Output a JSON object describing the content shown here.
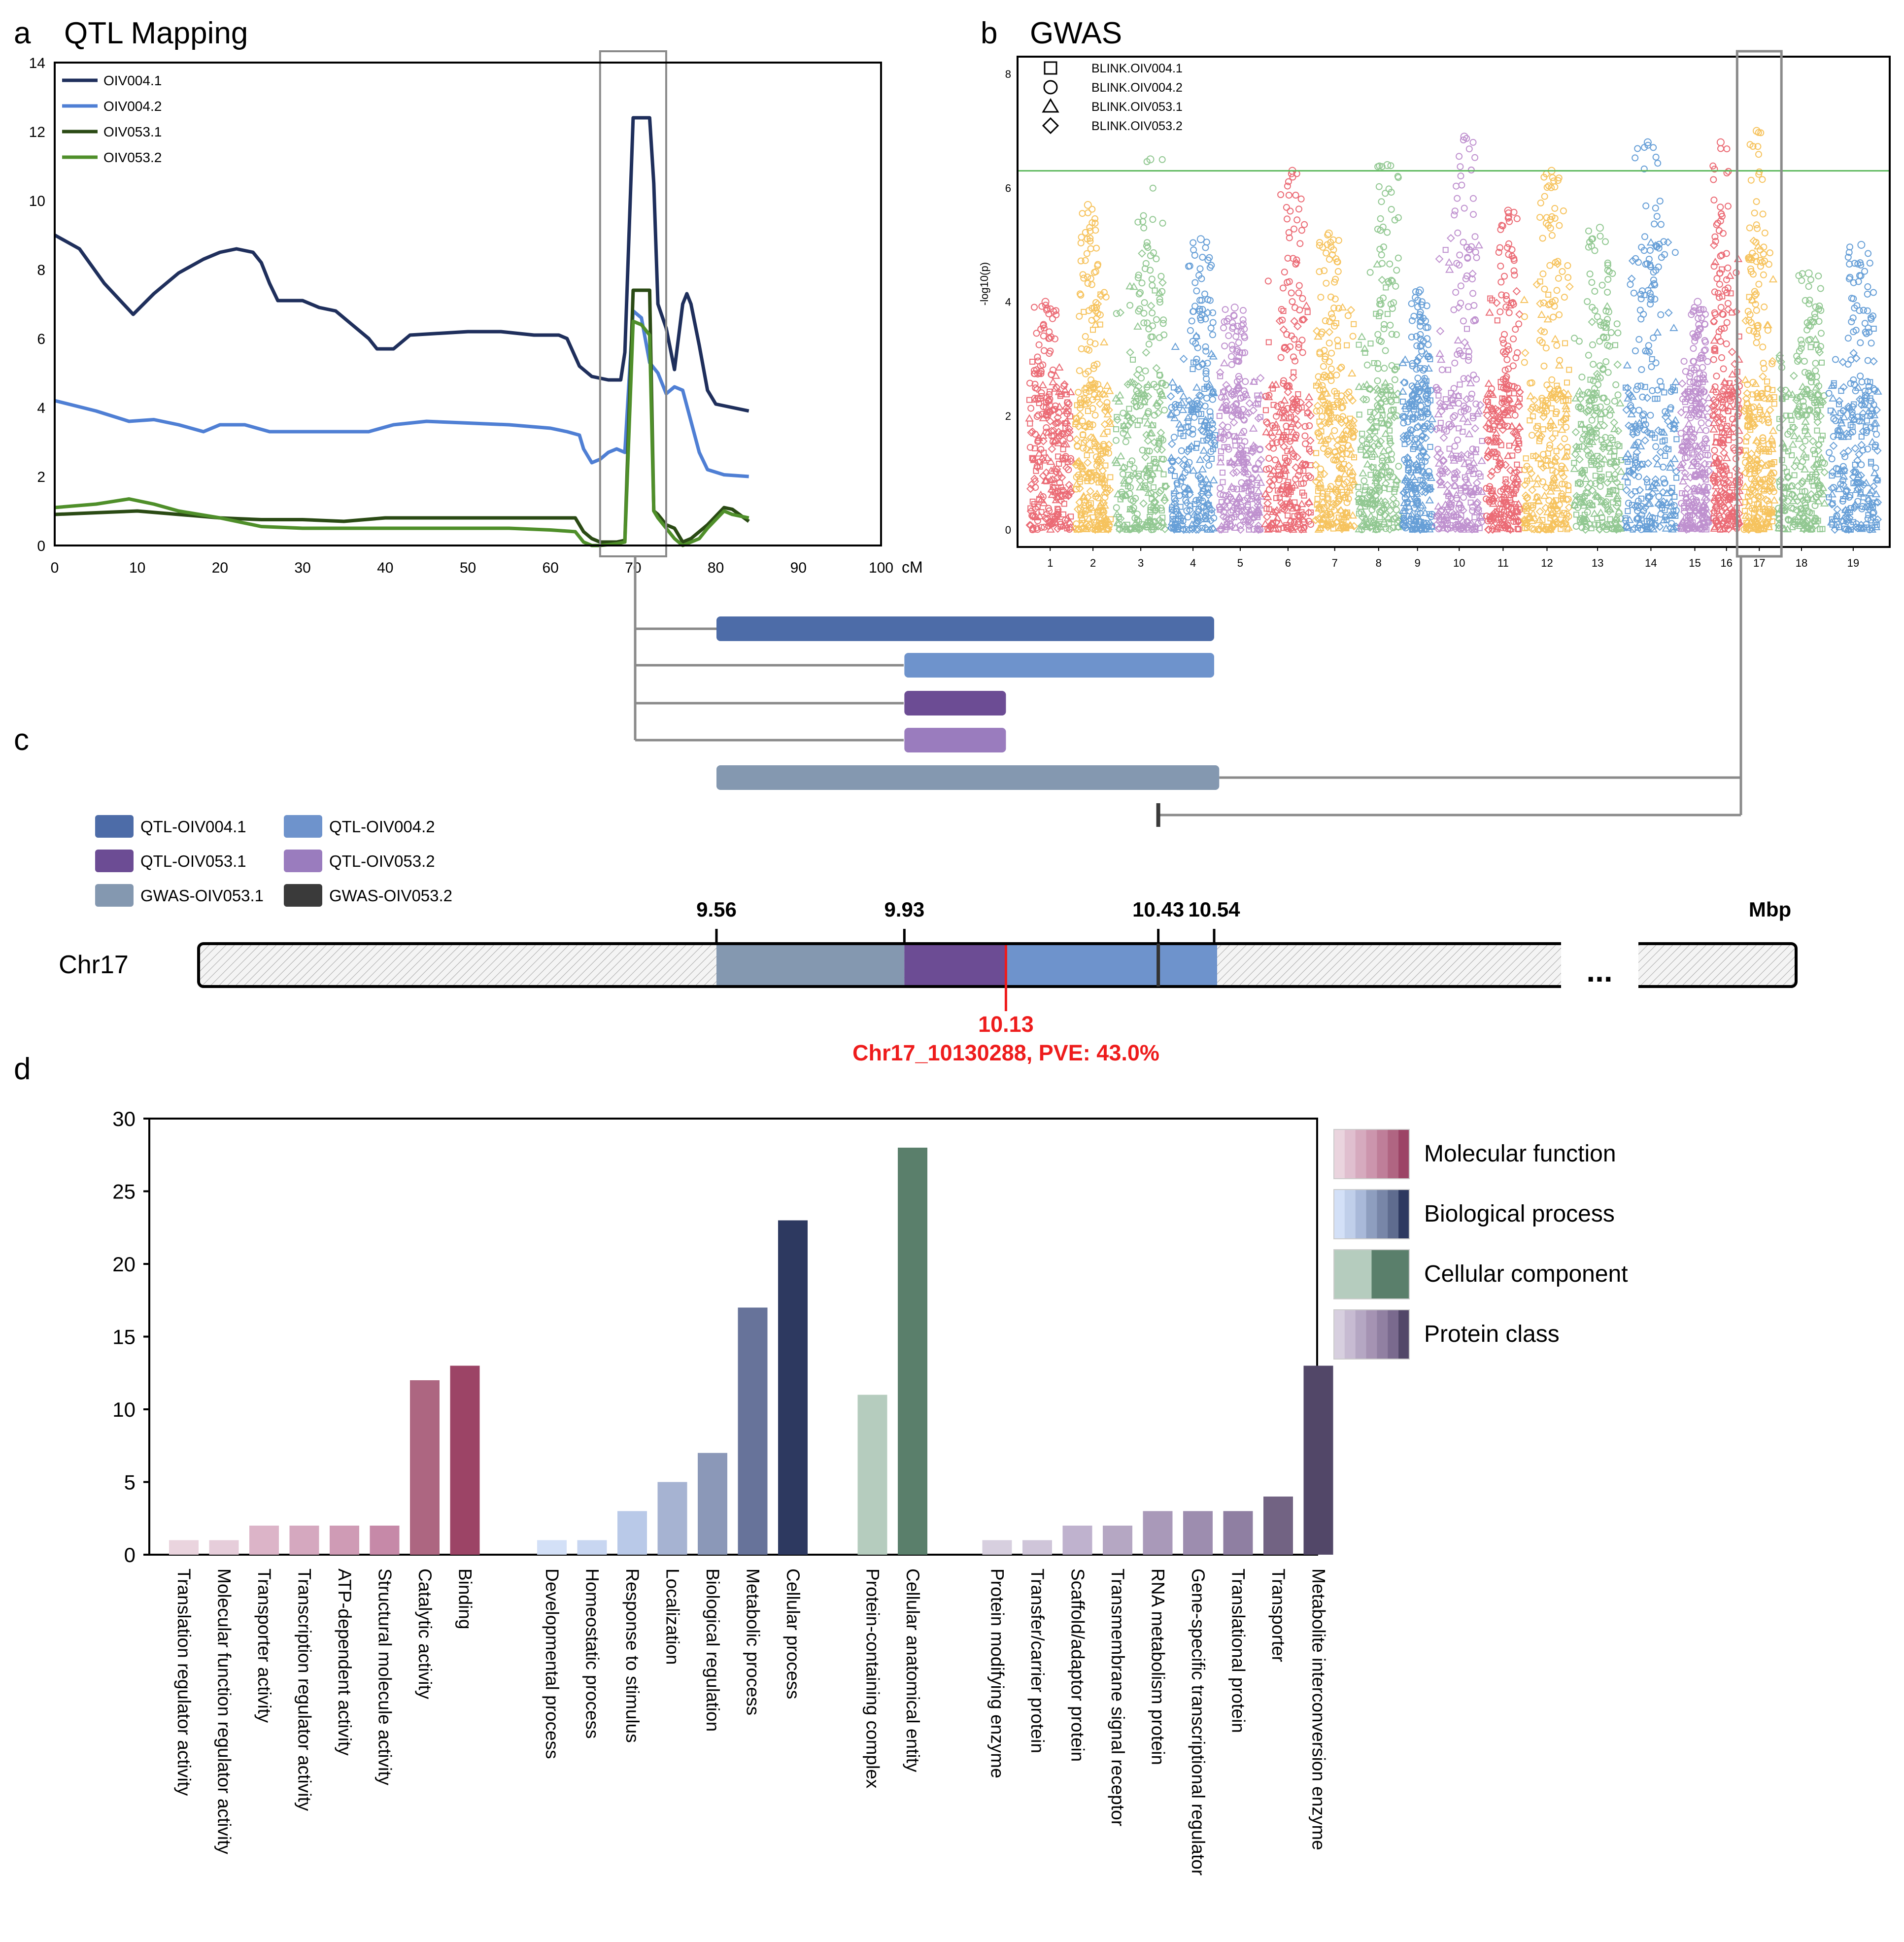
{
  "panels": {
    "a": {
      "letter": "a",
      "title": "QTL Mapping"
    },
    "b": {
      "letter": "b",
      "title": "GWAS"
    },
    "c": {
      "letter": "c"
    },
    "d": {
      "letter": "d"
    }
  },
  "chart_data": [
    {
      "id": "qtl",
      "type": "line",
      "title": "QTL Mapping",
      "xlabel": "cM",
      "xlim": [
        0,
        100
      ],
      "ylim": [
        0,
        14
      ],
      "x_ticks": [
        0,
        10,
        20,
        30,
        40,
        50,
        60,
        70,
        80,
        90,
        100
      ],
      "y_ticks": [
        0,
        2,
        4,
        6,
        8,
        10,
        12,
        14
      ],
      "highlight_range": [
        66,
        74
      ],
      "series": [
        {
          "name": "OIV004.1",
          "color": "#1f2f5c",
          "points": [
            [
              0,
              9.0
            ],
            [
              3,
              8.6
            ],
            [
              6,
              7.6
            ],
            [
              9.5,
              6.7
            ],
            [
              12,
              7.3
            ],
            [
              15,
              7.9
            ],
            [
              18,
              8.3
            ],
            [
              20,
              8.5
            ],
            [
              22,
              8.6
            ],
            [
              24,
              8.5
            ],
            [
              25,
              8.2
            ],
            [
              26,
              7.6
            ],
            [
              27,
              7.1
            ],
            [
              30,
              7.1
            ],
            [
              31,
              7.0
            ],
            [
              32,
              6.9
            ],
            [
              34,
              6.8
            ],
            [
              36,
              6.4
            ],
            [
              38,
              6.0
            ],
            [
              39,
              5.7
            ],
            [
              41,
              5.7
            ],
            [
              43,
              6.1
            ],
            [
              50,
              6.2
            ],
            [
              54,
              6.2
            ],
            [
              58,
              6.1
            ],
            [
              61,
              6.1
            ],
            [
              62,
              6.0
            ],
            [
              63.5,
              5.2
            ],
            [
              65,
              4.9
            ],
            [
              67,
              4.8
            ],
            [
              68.5,
              4.8
            ],
            [
              69,
              5.6
            ],
            [
              70,
              12.4
            ],
            [
              72,
              12.4
            ],
            [
              72.5,
              10.5
            ],
            [
              73,
              7.0
            ],
            [
              74,
              6.3
            ],
            [
              75,
              5.1
            ],
            [
              76,
              7.0
            ],
            [
              76.5,
              7.3
            ],
            [
              77,
              7.0
            ],
            [
              78,
              5.8
            ],
            [
              79,
              4.5
            ],
            [
              80,
              4.1
            ],
            [
              82,
              4.0
            ],
            [
              84,
              3.9
            ]
          ]
        },
        {
          "name": "OIV004.2",
          "color": "#4f7fd4",
          "points": [
            [
              0,
              4.2
            ],
            [
              5,
              3.9
            ],
            [
              9,
              3.6
            ],
            [
              12,
              3.65
            ],
            [
              15,
              3.5
            ],
            [
              18,
              3.3
            ],
            [
              20,
              3.5
            ],
            [
              23,
              3.5
            ],
            [
              26,
              3.3
            ],
            [
              30,
              3.3
            ],
            [
              34,
              3.3
            ],
            [
              38,
              3.3
            ],
            [
              41,
              3.5
            ],
            [
              45,
              3.6
            ],
            [
              50,
              3.55
            ],
            [
              55,
              3.5
            ],
            [
              60,
              3.4
            ],
            [
              62,
              3.3
            ],
            [
              63.5,
              3.2
            ],
            [
              64,
              2.8
            ],
            [
              65,
              2.4
            ],
            [
              66,
              2.5
            ],
            [
              67,
              2.7
            ],
            [
              68,
              2.8
            ],
            [
              69,
              2.7
            ],
            [
              70,
              6.8
            ],
            [
              71,
              6.6
            ],
            [
              72,
              5.3
            ],
            [
              73,
              5.0
            ],
            [
              74,
              4.4
            ],
            [
              75,
              4.6
            ],
            [
              76,
              4.5
            ],
            [
              78,
              2.7
            ],
            [
              79,
              2.2
            ],
            [
              81,
              2.05
            ],
            [
              84,
              2.0
            ]
          ]
        },
        {
          "name": "OIV053.1",
          "color": "#2a4a14",
          "points": [
            [
              0,
              0.9
            ],
            [
              5,
              0.95
            ],
            [
              10,
              1.0
            ],
            [
              15,
              0.9
            ],
            [
              20,
              0.8
            ],
            [
              25,
              0.75
            ],
            [
              30,
              0.75
            ],
            [
              35,
              0.7
            ],
            [
              40,
              0.8
            ],
            [
              45,
              0.8
            ],
            [
              50,
              0.8
            ],
            [
              55,
              0.8
            ],
            [
              60,
              0.8
            ],
            [
              63,
              0.8
            ],
            [
              64,
              0.4
            ],
            [
              65,
              0.2
            ],
            [
              66,
              0.1
            ],
            [
              68,
              0.1
            ],
            [
              69,
              0.15
            ],
            [
              70,
              7.4
            ],
            [
              72,
              7.4
            ],
            [
              72.5,
              1.0
            ],
            [
              73,
              0.9
            ],
            [
              74,
              0.6
            ],
            [
              75,
              0.5
            ],
            [
              76,
              0.1
            ],
            [
              77,
              0.2
            ],
            [
              79,
              0.6
            ],
            [
              81,
              1.1
            ],
            [
              82,
              1.05
            ],
            [
              84,
              0.7
            ]
          ]
        },
        {
          "name": "OIV053.2",
          "color": "#4f8f2a",
          "points": [
            [
              0,
              1.1
            ],
            [
              5,
              1.2
            ],
            [
              9,
              1.35
            ],
            [
              12,
              1.2
            ],
            [
              15,
              1.0
            ],
            [
              20,
              0.8
            ],
            [
              25,
              0.55
            ],
            [
              30,
              0.5
            ],
            [
              35,
              0.5
            ],
            [
              40,
              0.5
            ],
            [
              45,
              0.5
            ],
            [
              50,
              0.5
            ],
            [
              55,
              0.5
            ],
            [
              60,
              0.45
            ],
            [
              63,
              0.4
            ],
            [
              64,
              0.1
            ],
            [
              65,
              0.0
            ],
            [
              66,
              0.0
            ],
            [
              68,
              0.05
            ],
            [
              69,
              0.1
            ],
            [
              70,
              6.5
            ],
            [
              71,
              6.4
            ],
            [
              72,
              6.1
            ],
            [
              72.5,
              1.0
            ],
            [
              73,
              0.8
            ],
            [
              74,
              0.5
            ],
            [
              75,
              0.2
            ],
            [
              76,
              0.0
            ],
            [
              78,
              0.2
            ],
            [
              79,
              0.5
            ],
            [
              81,
              1.0
            ],
            [
              82,
              0.9
            ],
            [
              84,
              0.8
            ]
          ]
        }
      ]
    },
    {
      "id": "gwas",
      "type": "scatter",
      "title": "GWAS",
      "ylabel": "-log10(p)",
      "ylim": [
        0,
        8
      ],
      "y_ticks": [
        0,
        2,
        4,
        6,
        8
      ],
      "threshold": 6.3,
      "threshold_color": "#5cb85c",
      "highlight_chromosome": "17",
      "legend": [
        {
          "symbol": "square",
          "label": "BLINK.OIV004.1"
        },
        {
          "symbol": "circle",
          "label": "BLINK.OIV004.2"
        },
        {
          "symbol": "triangle",
          "label": "BLINK.OIV053.1"
        },
        {
          "symbol": "diamond",
          "label": "BLINK.OIV053.2"
        }
      ],
      "chromosomes": [
        {
          "label": "1",
          "color": "#e8525e",
          "peak": 4.0
        },
        {
          "label": "2",
          "color": "#f5b942",
          "peak": 5.7
        },
        {
          "label": "3",
          "color": "#7fbf7f",
          "peak": 6.5
        },
        {
          "label": "4",
          "color": "#4d8fd1",
          "peak": 5.1
        },
        {
          "label": "5",
          "color": "#b57ec7",
          "peak": 3.9
        },
        {
          "label": "6",
          "color": "#e8525e",
          "peak": 6.3
        },
        {
          "label": "7",
          "color": "#f5b942",
          "peak": 5.2
        },
        {
          "label": "8",
          "color": "#7fbf7f",
          "peak": 6.4
        },
        {
          "label": "9",
          "color": "#4d8fd1",
          "peak": 4.2
        },
        {
          "label": "10",
          "color": "#b57ec7",
          "peak": 6.9
        },
        {
          "label": "11",
          "color": "#e8525e",
          "peak": 5.6
        },
        {
          "label": "12",
          "color": "#f5b942",
          "peak": 6.3
        },
        {
          "label": "13",
          "color": "#7fbf7f",
          "peak": 5.3
        },
        {
          "label": "14",
          "color": "#4d8fd1",
          "peak": 6.8
        },
        {
          "label": "15",
          "color": "#b57ec7",
          "peak": 4.0
        },
        {
          "label": "16",
          "color": "#e8525e",
          "peak": 6.8
        },
        {
          "label": "17",
          "color": "#f5b942",
          "peak": 7.0
        },
        {
          "label": "18",
          "color": "#7fbf7f",
          "peak": 4.5
        },
        {
          "label": "19",
          "color": "#4d8fd1",
          "peak": 5.0
        }
      ]
    },
    {
      "id": "go",
      "type": "bar",
      "ylim": [
        0,
        30
      ],
      "y_ticks": [
        0,
        5,
        10,
        15,
        20,
        25,
        30
      ],
      "legend": [
        {
          "label": "Molecular function",
          "colors": [
            "#ead4de",
            "#e0bfcf",
            "#d6aabe",
            "#cc95ad",
            "#bf7e99",
            "#b06582",
            "#9c4466"
          ]
        },
        {
          "label": "Biological process",
          "colors": [
            "#d3e0f7",
            "#c0cfea",
            "#a9b9d9",
            "#8e9ebf",
            "#7886a8",
            "#5f6c8f",
            "#2d3960"
          ]
        },
        {
          "label": "Cellular component",
          "colors": [
            "#b5ccbe",
            "#5a7f6b"
          ]
        },
        {
          "label": "Protein class",
          "colors": [
            "#d7cfdf",
            "#c7bbd2",
            "#b5a7c3",
            "#a593b3",
            "#9180a2",
            "#7a6a8e",
            "#524768"
          ]
        }
      ],
      "groups": [
        {
          "name": "Molecular function",
          "bars": [
            {
              "label": "Translation regulator activity",
              "value": 1,
              "color": "#ead4de"
            },
            {
              "label": "Molecular function regulator activity",
              "value": 1,
              "color": "#e6cdda"
            },
            {
              "label": "Transporter activity",
              "value": 2,
              "color": "#dcb4c8"
            },
            {
              "label": "Transcription regulator activity",
              "value": 2,
              "color": "#d5a8bf"
            },
            {
              "label": "ATP-dependent activity",
              "value": 2,
              "color": "#cf9bb5"
            },
            {
              "label": "Structural molecule activity",
              "value": 2,
              "color": "#c689a8"
            },
            {
              "label": "Catalytic activity",
              "value": 12,
              "color": "#ad6681"
            },
            {
              "label": "Binding",
              "value": 13,
              "color": "#9c4466"
            }
          ]
        },
        {
          "name": "Biological process",
          "bars": [
            {
              "label": "Developmental process",
              "value": 1,
              "color": "#d3e0f7"
            },
            {
              "label": "Homeostatic process",
              "value": 1,
              "color": "#c8d6f1"
            },
            {
              "label": "Response to stimulus",
              "value": 3,
              "color": "#b9c9e8"
            },
            {
              "label": "Localization",
              "value": 5,
              "color": "#a6b3d2"
            },
            {
              "label": "Biological regulation",
              "value": 7,
              "color": "#8b98b8"
            },
            {
              "label": "Metabolic process",
              "value": 17,
              "color": "#67739a"
            },
            {
              "label": "Cellular process",
              "value": 23,
              "color": "#2d3960"
            }
          ]
        },
        {
          "name": "Cellular component",
          "bars": [
            {
              "label": "Protein-containing complex",
              "value": 11,
              "color": "#b5ccbe"
            },
            {
              "label": "Cellular anatomical entity",
              "value": 28,
              "color": "#5a7f6b"
            }
          ]
        },
        {
          "name": "Protein class",
          "bars": [
            {
              "label": "Protein modifying enzyme",
              "value": 1,
              "color": "#d7cfdf"
            },
            {
              "label": "Transfer/carrier protein",
              "value": 1,
              "color": "#cfc5d9"
            },
            {
              "label": "Scaffold/adaptor protein",
              "value": 2,
              "color": "#bfb2ce"
            },
            {
              "label": "Transmembrane signal receptor",
              "value": 2,
              "color": "#b5a7c3"
            },
            {
              "label": "RNA metabolism protein",
              "value": 3,
              "color": "#a999b9"
            },
            {
              "label": "Gene-specific transcriptional regulator",
              "value": 3,
              "color": "#9d8daf"
            },
            {
              "label": "Translational protein",
              "value": 3,
              "color": "#8f7fa2"
            },
            {
              "label": "Transporter",
              "value": 4,
              "color": "#726383"
            },
            {
              "label": "Metabolite interconversion enzyme",
              "value": 13,
              "color": "#524768"
            }
          ]
        }
      ]
    }
  ],
  "intervals": {
    "legend": [
      {
        "label": "QTL-OIV004.1",
        "color": "#4d6ca8"
      },
      {
        "label": "QTL-OIV004.2",
        "color": "#6e93cc"
      },
      {
        "label": "QTL-OIV053.1",
        "color": "#6c4c94"
      },
      {
        "label": "QTL-OIV053.2",
        "color": "#9a7cbe"
      },
      {
        "label": "GWAS-OIV053.1",
        "color": "#8498b0"
      },
      {
        "label": "GWAS-OIV053.2",
        "color": "#3a3a3a"
      }
    ],
    "bars_mbp": [
      {
        "name": "QTL-OIV004.1",
        "start": 9.56,
        "end": 10.54
      },
      {
        "name": "QTL-OIV004.2",
        "start": 9.93,
        "end": 10.54
      },
      {
        "name": "QTL-OIV053.1",
        "start": 9.93,
        "end": 10.13
      },
      {
        "name": "QTL-OIV053.2",
        "start": 9.93,
        "end": 10.13
      },
      {
        "name": "GWAS-OIV053.1",
        "start": 9.56,
        "end": 10.55
      },
      {
        "name": "GWAS-OIV053.2",
        "start": 10.43,
        "end": 10.43
      }
    ],
    "chromosome": {
      "name": "Chr17",
      "unit": "Mbp",
      "ticks": [
        "9.56",
        "9.93",
        "10.43",
        "10.54"
      ],
      "ellipsis": "...",
      "marker_position": "10.13",
      "marker_label": "Chr17_10130288, PVE: 43.0%",
      "marker_color": "#ee1c1c"
    }
  }
}
